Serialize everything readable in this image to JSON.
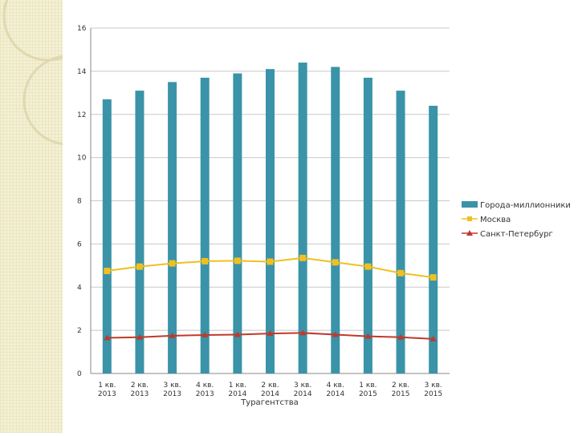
{
  "chart_data": {
    "type": "bar",
    "title": "",
    "xlabel": "Турагентства",
    "ylabel": "",
    "ylim": [
      0,
      16
    ],
    "yticks": [
      0,
      2,
      4,
      6,
      8,
      10,
      12,
      14,
      16
    ],
    "grid": true,
    "legend_position": "right",
    "categories": [
      [
        "1 кв.",
        "2013"
      ],
      [
        "2 кв.",
        "2013"
      ],
      [
        "3 кв.",
        "2013"
      ],
      [
        "4 кв.",
        "2013"
      ],
      [
        "1 кв.",
        "2014"
      ],
      [
        "2 кв.",
        "2014"
      ],
      [
        "3 кв.",
        "2014"
      ],
      [
        "4 кв.",
        "2014"
      ],
      [
        "1 кв.",
        "2015"
      ],
      [
        "2 кв.",
        "2015"
      ],
      [
        "3 кв.",
        "2015"
      ]
    ],
    "series": [
      {
        "name": "Города-миллионники",
        "kind": "bar",
        "color": "#3a93a8",
        "values": [
          12.7,
          13.1,
          13.5,
          13.7,
          13.9,
          14.1,
          14.4,
          14.2,
          13.7,
          13.1,
          12.4
        ]
      },
      {
        "name": "Москва",
        "kind": "line",
        "marker": "square",
        "color": "#f0c020",
        "values": [
          4.75,
          4.95,
          5.1,
          5.2,
          5.22,
          5.18,
          5.35,
          5.15,
          4.95,
          4.65,
          4.45
        ]
      },
      {
        "name": "Санкт-Петербург",
        "kind": "line",
        "marker": "triangle",
        "color": "#c0392b",
        "values": [
          1.65,
          1.68,
          1.75,
          1.78,
          1.8,
          1.85,
          1.88,
          1.8,
          1.72,
          1.68,
          1.6
        ]
      }
    ]
  }
}
